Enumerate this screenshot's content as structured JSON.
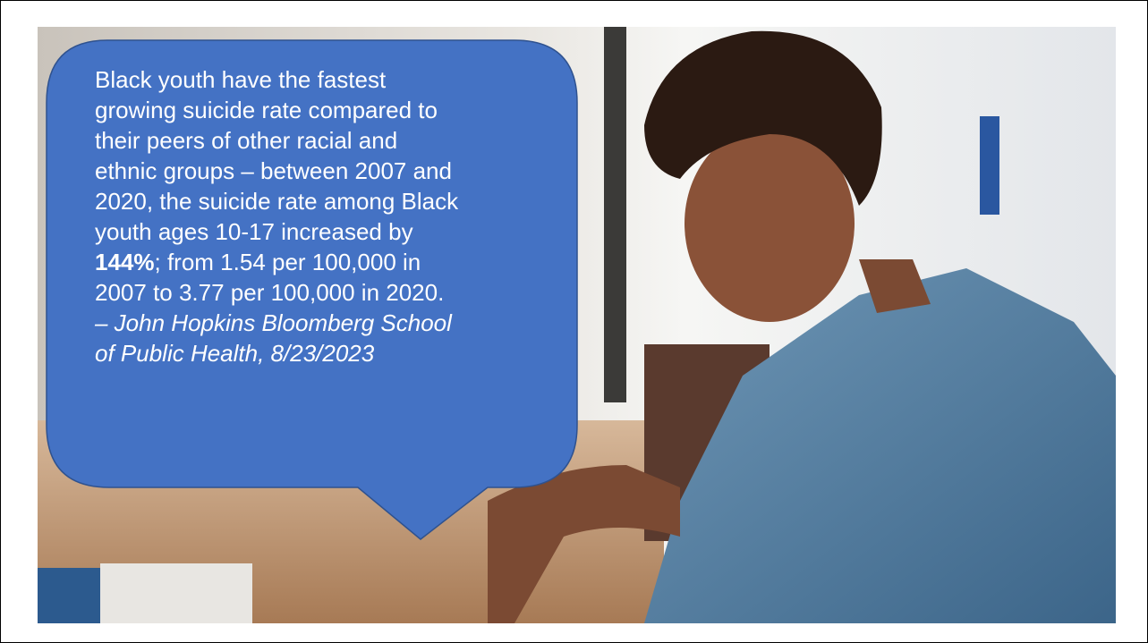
{
  "slide": {
    "quote": {
      "lines": [
        "Black youth have the fastest",
        "growing suicide rate compared to",
        "their peers of other racial and",
        "ethnic groups – between 2007 and",
        "2020, the suicide rate among Black",
        "youth ages 10-17 increased by"
      ],
      "emphasis": "144%",
      "emphasis_rest": "; from 1.54 per 100,000 in",
      "closing_line": "2007 to 3.77 per 100,000 in 2020."
    },
    "citation": {
      "lines": [
        "– John Hopkins Bloomberg School",
        "of Public Health, 8/23/2023"
      ]
    }
  }
}
